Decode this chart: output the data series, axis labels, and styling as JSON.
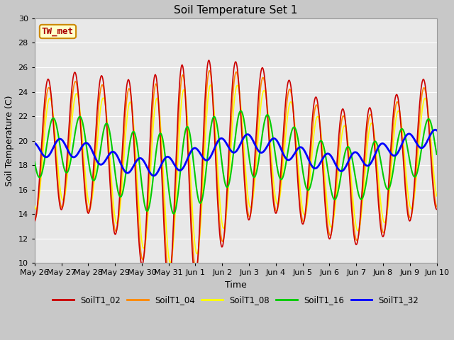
{
  "title": "Soil Temperature Set 1",
  "xlabel": "Time",
  "ylabel": "Soil Temperature (C)",
  "ylim": [
    10,
    30
  ],
  "fig_width": 6.4,
  "fig_height": 4.8,
  "fig_dpi": 100,
  "background_color": "#e8e8e8",
  "fig_bg_color": "#c8c8c8",
  "grid_color": "#ffffff",
  "series_colors": {
    "SoilT1_02": "#cc0000",
    "SoilT1_04": "#ff8800",
    "SoilT1_08": "#ffff00",
    "SoilT1_16": "#00cc00",
    "SoilT1_32": "#0000ff"
  },
  "line_widths": {
    "SoilT1_02": 1.2,
    "SoilT1_04": 1.2,
    "SoilT1_08": 1.2,
    "SoilT1_16": 1.5,
    "SoilT1_32": 2.0
  },
  "annotation_text": "TW_met",
  "annotation_color": "#aa0000",
  "annotation_bg": "#ffffcc",
  "annotation_border": "#cc8800",
  "tick_labels": [
    "May 26",
    "May 27",
    "May 28",
    "May 29",
    "May 30",
    "May 31",
    "Jun 1",
    "Jun 2",
    "Jun 3",
    "Jun 4",
    "Jun 5",
    "Jun 6",
    "Jun 7",
    "Jun 8",
    "Jun 9",
    "Jun 10"
  ],
  "legend_labels": [
    "SoilT1_02",
    "SoilT1_04",
    "SoilT1_08",
    "SoilT1_16",
    "SoilT1_32"
  ]
}
